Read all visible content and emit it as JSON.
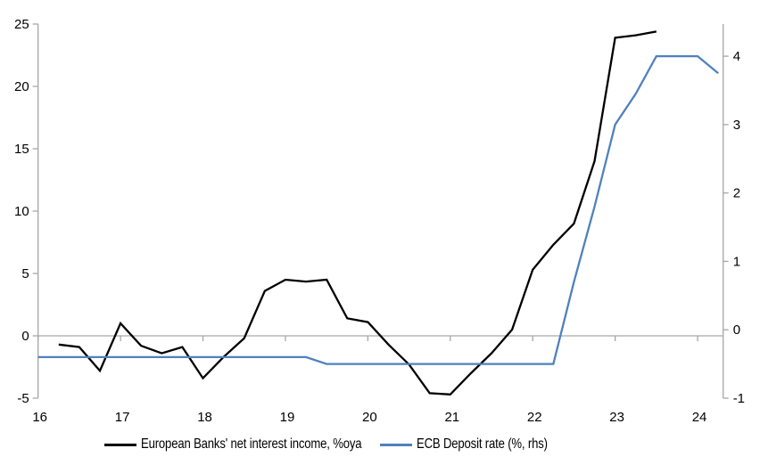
{
  "chart_data": {
    "type": "line",
    "title": "",
    "xlabel": "",
    "ylabel_left": "",
    "ylabel_right": "",
    "grid": false,
    "legend_position": "bottom",
    "x_axis": {
      "min": 16,
      "max": 24.31,
      "ticks": [
        16,
        17,
        18,
        19,
        20,
        21,
        22,
        23,
        24
      ]
    },
    "left_axis": {
      "min": -5,
      "max": 25,
      "ticks": [
        -5,
        0,
        5,
        10,
        15,
        20,
        25
      ]
    },
    "right_axis": {
      "min": -1,
      "max": 4.47,
      "ticks": [
        -1,
        0,
        1,
        2,
        3,
        4
      ]
    },
    "zero_line_value": 0,
    "colors": {
      "axis_gray": "#a6a6a6",
      "black_series": "#000000",
      "blue_series": "#4f81bd"
    },
    "series": [
      {
        "id": "nii-line",
        "name": "European Banks' net interest income, %oya",
        "axis": "left",
        "color": "#000000",
        "x": [
          16.25,
          16.5,
          16.75,
          17.0,
          17.25,
          17.5,
          17.75,
          18.0,
          18.25,
          18.5,
          18.75,
          19.0,
          19.25,
          19.5,
          19.75,
          20.0,
          20.25,
          20.5,
          20.75,
          21.0,
          21.25,
          21.5,
          21.75,
          22.0,
          22.25,
          22.5,
          22.75,
          23.0,
          23.25,
          23.5
        ],
        "y": [
          -0.7,
          -0.9,
          -2.8,
          1.0,
          -0.8,
          -1.4,
          -0.9,
          -3.4,
          -1.7,
          -0.2,
          3.6,
          4.5,
          4.35,
          4.5,
          1.4,
          1.1,
          -0.7,
          -2.3,
          -4.6,
          -4.7,
          -3.0,
          -1.4,
          0.5,
          5.3,
          7.3,
          9.0,
          14.0,
          23.9,
          24.1,
          24.4
        ]
      },
      {
        "id": "ecb-deposit-rate-line",
        "name": "ECB Deposit rate (%, rhs)",
        "axis": "right",
        "color": "#4f81bd",
        "x": [
          16.0,
          16.25,
          16.5,
          16.75,
          17.0,
          17.25,
          17.5,
          17.75,
          18.0,
          18.25,
          18.5,
          18.75,
          19.0,
          19.25,
          19.5,
          19.75,
          20.0,
          20.25,
          20.5,
          20.75,
          21.0,
          21.25,
          21.5,
          21.75,
          22.0,
          22.25,
          22.5,
          22.75,
          23.0,
          23.25,
          23.5,
          23.75,
          24.0,
          24.25
        ],
        "y": [
          -0.4,
          -0.4,
          -0.4,
          -0.4,
          -0.4,
          -0.4,
          -0.4,
          -0.4,
          -0.4,
          -0.4,
          -0.4,
          -0.4,
          -0.4,
          -0.4,
          -0.5,
          -0.5,
          -0.5,
          -0.5,
          -0.5,
          -0.5,
          -0.5,
          -0.5,
          -0.5,
          -0.5,
          -0.5,
          -0.5,
          0.7,
          1.8,
          3.0,
          3.45,
          4.0,
          4.0,
          4.0,
          3.75
        ]
      }
    ],
    "legend": {
      "items": [
        {
          "label": "European Banks' net interest income, %oya",
          "color": "#000000"
        },
        {
          "label": "ECB Deposit rate (%, rhs)",
          "color": "#4f81bd"
        }
      ]
    }
  }
}
